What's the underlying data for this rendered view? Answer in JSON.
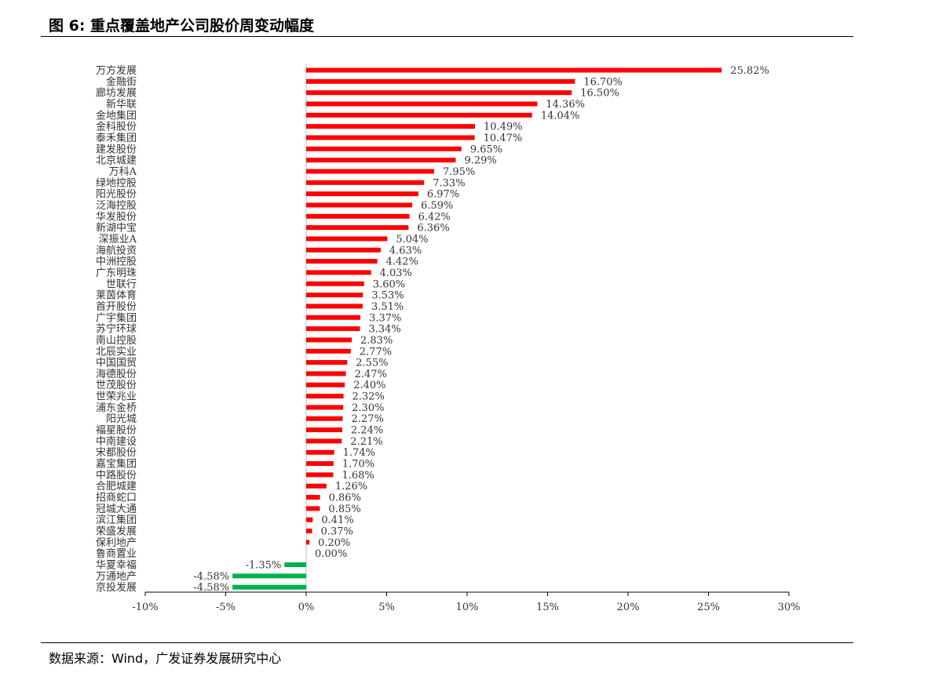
{
  "figure": {
    "title": "图 6:  重点覆盖地产公司股价周变动幅度",
    "source": "数据来源：Wind，广发证券发展研究中心"
  },
  "colors": {
    "positive": "#ff0000",
    "negative": "#00b050",
    "axis": "#000000",
    "zero_line": "#bfbfbf"
  },
  "chart_data": {
    "type": "bar",
    "orientation": "horizontal",
    "title": "",
    "xlabel": "",
    "ylabel": "",
    "xlim": [
      -10,
      30
    ],
    "xticks": [
      -10,
      -5,
      0,
      5,
      10,
      15,
      20,
      25,
      30
    ],
    "xtick_labels": [
      "-10%",
      "-5%",
      "0%",
      "5%",
      "10%",
      "15%",
      "20%",
      "25%",
      "30%"
    ],
    "grid": false,
    "legend": "none",
    "categories": [
      "万方发展",
      "金融街",
      "廊坊发展",
      "新华联",
      "金地集团",
      "金科股份",
      "泰禾集团",
      "建发股份",
      "北京城建",
      "万科A",
      "绿地控股",
      "阳光股份",
      "泛海控股",
      "华发股份",
      "新湖中宝",
      "深振业A",
      "海航投资",
      "中洲控股",
      "广东明珠",
      "世联行",
      "莱茵体育",
      "首开股份",
      "广宇集团",
      "苏宁环球",
      "南山控股",
      "北辰实业",
      "中国国贸",
      "海德股份",
      "世茂股份",
      "世荣兆业",
      "浦东金桥",
      "阳光城",
      "福星股份",
      "中南建设",
      "宋都股份",
      "嘉宝集团",
      "中路股份",
      "合肥城建",
      "招商蛇口",
      "冠城大通",
      "滨江集团",
      "荣盛发展",
      "保利地产",
      "鲁商置业",
      "华夏幸福",
      "万通地产",
      "京投发展"
    ],
    "values": [
      25.82,
      16.7,
      16.5,
      14.36,
      14.04,
      10.49,
      10.47,
      9.65,
      9.29,
      7.95,
      7.33,
      6.97,
      6.59,
      6.42,
      6.36,
      5.04,
      4.63,
      4.42,
      4.03,
      3.6,
      3.53,
      3.51,
      3.37,
      3.34,
      2.83,
      2.77,
      2.55,
      2.47,
      2.4,
      2.32,
      2.3,
      2.27,
      2.24,
      2.21,
      1.74,
      1.7,
      1.68,
      1.26,
      0.86,
      0.85,
      0.41,
      0.37,
      0.2,
      0.0,
      -1.35,
      -4.58,
      -4.58
    ],
    "value_labels": [
      "25.82%",
      "16.70%",
      "16.50%",
      "14.36%",
      "14.04%",
      "10.49%",
      "10.47%",
      "9.65%",
      "9.29%",
      "7.95%",
      "7.33%",
      "6.97%",
      "6.59%",
      "6.42%",
      "6.36%",
      "5.04%",
      "4.63%",
      "4.42%",
      "4.03%",
      "3.60%",
      "3.53%",
      "3.51%",
      "3.37%",
      "3.34%",
      "2.83%",
      "2.77%",
      "2.55%",
      "2.47%",
      "2.40%",
      "2.32%",
      "2.30%",
      "2.27%",
      "2.24%",
      "2.21%",
      "1.74%",
      "1.70%",
      "1.68%",
      "1.26%",
      "0.86%",
      "0.85%",
      "0.41%",
      "0.37%",
      "0.20%",
      "0.00%",
      "-1.35%",
      "-4.58%",
      "-4.58%"
    ]
  }
}
